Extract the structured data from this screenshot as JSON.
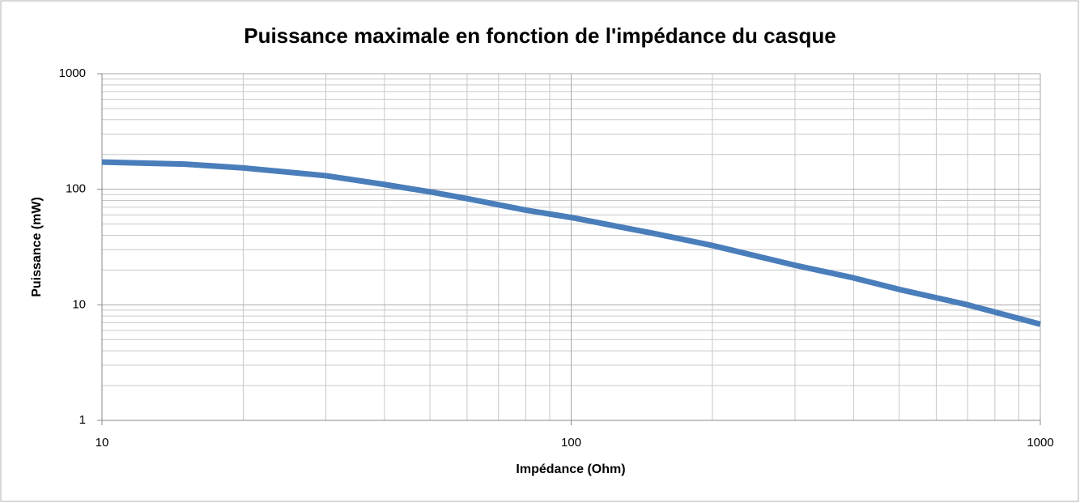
{
  "chart_data": {
    "type": "line",
    "title": "Puissance maximale en fonction de l'impédance du casque",
    "x_label": "Impédance (Ohm)",
    "y_label": "Puissance (mW)",
    "x": [
      10,
      15,
      20,
      30,
      40,
      50,
      60,
      80,
      100,
      150,
      200,
      300,
      400,
      500,
      700,
      1000
    ],
    "series": [
      {
        "name": "Puissance",
        "color": "#4a7ebb",
        "values": [
          172,
          165,
          153,
          131,
          110,
          95,
          83,
          66,
          57,
          41.5,
          32.6,
          22,
          17.1,
          13.6,
          10,
          6.8
        ]
      }
    ],
    "xlim": [
      10,
      1000
    ],
    "ylim": [
      1,
      1000
    ],
    "xticks": [
      10,
      100,
      1000
    ],
    "yticks": [
      1,
      10,
      100,
      1000
    ],
    "xscale": "log",
    "yscale": "log",
    "grid": true,
    "minor_grid": true
  }
}
